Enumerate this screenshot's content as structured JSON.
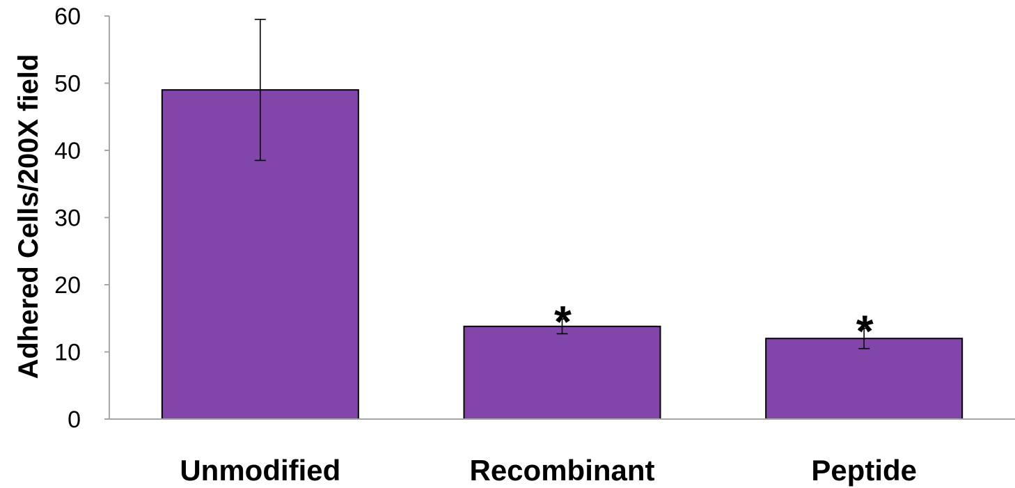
{
  "chart_data": {
    "type": "bar",
    "title": "",
    "xlabel": "",
    "ylabel": "Adhered Cells/200X field",
    "categories": [
      "Unmodified",
      "Recombinant",
      "Peptide"
    ],
    "values": [
      49,
      13.8,
      12
    ],
    "error_bars": [
      10.5,
      1.1,
      1.5
    ],
    "annotations": [
      "",
      "*",
      "*"
    ],
    "ylim": [
      0,
      60
    ],
    "yticks": [
      "0",
      "10",
      "20",
      "30",
      "40",
      "50",
      "60"
    ],
    "grid": false,
    "legend": "none",
    "bar_color": "#8246AB",
    "bar_edge_color": "#000000",
    "axis_color": "#A6A6A6"
  }
}
